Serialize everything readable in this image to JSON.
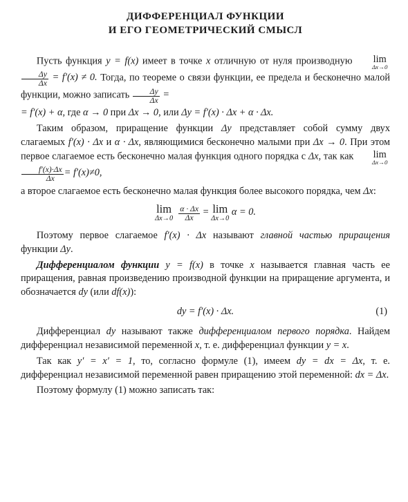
{
  "title_l1": "ДИФФЕРЕНЦИАЛ ФУНКЦИИ",
  "title_l2": "И ЕГО ГЕОМЕТРИЧЕСКИЙ СМЫСЛ",
  "p1a": "Пусть функция ",
  "p1_yfx": "y = f(x)",
  "p1b": " имеет в точке ",
  "p1_x": "x",
  "p1c": " отличную от нуля про­изводную ",
  "p1_lim_sub": "Δx→0",
  "p1_frac_num": "Δy",
  "p1_frac_den": "Δx",
  "p1_eq": " = f′(x) ≠ 0.",
  "p1d": " Тогда, по теореме о связи функции, ее предела и бесконечно малой функции, можно записать ",
  "p1_frac2_num": "Δy",
  "p1_frac2_den": "Δx",
  "p1_eq2": " =",
  "p1_line2": "= f′(x) + α,",
  "p1e": " где ",
  "p1_alpha0": "α → 0",
  "p1f": " при ",
  "p1_dx0": "Δx → 0",
  "p1g": ", или ",
  "p1_dy": "Δy = f′(x) · Δx + α · Δx.",
  "p2a": "Таким образом, приращение функции ",
  "p2_dy": "Δy",
  "p2b": " представляет собой сумму двух слагаемых ",
  "p2_s1": "f′(x) · Δx",
  "p2c": " и ",
  "p2_s2": "α · Δx",
  "p2d": ", являющимися бесконечно малыми при ",
  "p2_dx0": "Δx → 0",
  "p2e": ". При этом первое слагаемое есть бесконечно ма­лая функция одного порядка с ",
  "p2_dx": "Δx",
  "p2f": ", так как ",
  "p2_lim_sub": "Δx→0",
  "p2_frac_num": "f′(x)·Δx",
  "p2_frac_den": "Δx",
  "p2_eq": "= f′(x)≠0,",
  "p2g": "а второе слагаемое есть бесконечно малая функция более высокого порядка, чем ",
  "p2_dx2": "Δx",
  "p2h": ":",
  "d1_lim_sub": "Δx→0",
  "d1_frac_num": "α · Δx",
  "d1_frac_den": "Δx",
  "d1_mid": " = ",
  "d1_lim2_sub": "Δx→0",
  "d1_rhs": " α = 0.",
  "p3a": "Поэтому первое слагаемое ",
  "p3_term": "f′(x) · Δx",
  "p3b": " называют ",
  "p3_em": "главной частью приращения",
  "p3c": " функции ",
  "p3_dy": "Δy",
  "p3d": ".",
  "p4_em": "Дифференциалом функции",
  "p4_yfx": " y = f(x)",
  "p4a": " в точке ",
  "p4_x": "x",
  "p4b": " называется глав­ная часть ее приращения, равная произведению производной функ­ции на приращение аргумента, и обозначается ",
  "p4_dy": "dy",
  "p4c": " (или ",
  "p4_dfx": "df(x)",
  "p4d": "):",
  "d2_eq": "dy = f′(x) · Δx.",
  "d2_no": "(1)",
  "p5a": "Дифференциал ",
  "p5_dy": "dy",
  "p5b": " называют также ",
  "p5_em": "дифференциалом первого по­рядка",
  "p5c": ". Найдем дифференциал независимой переменной ",
  "p5_x": "x",
  "p5d": ", т. е. диф­ференциал функции ",
  "p5_yx": "y = x",
  "p5e": ".",
  "p6a": "Так как ",
  "p6_eq1": "y′ = x′ = 1",
  "p6b": ", то, согласно формуле (1), имеем ",
  "p6_eq2": "dy = dx = Δx",
  "p6c": ", т. е. дифференциал независимой переменной равен приращению этой переменной: ",
  "p6_eq3": "dx = Δx",
  "p6d": ".",
  "p7": "Поэтому формулу (1) можно записать так:",
  "lim_word": "lim"
}
